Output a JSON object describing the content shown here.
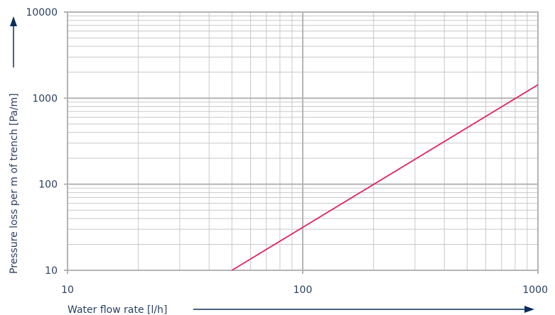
{
  "chart_data": {
    "type": "line",
    "xlabel": "Water flow rate [l/h]",
    "ylabel": "Pressure loss per m of trench [Pa/m]",
    "x_scale": "log",
    "y_scale": "log",
    "xlim": [
      10,
      1000
    ],
    "ylim": [
      10,
      10000
    ],
    "x_ticks": [
      "10",
      "100",
      "1000"
    ],
    "y_ticks": [
      "10",
      "100",
      "1000",
      "10000"
    ],
    "grid": true,
    "series": [
      {
        "x": [
          50,
          1000
        ],
        "y": [
          10,
          1430
        ]
      }
    ],
    "colors": {
      "line": "#e0245e",
      "grid": "#c8c8c8",
      "axis": "#b4b4b4",
      "text": "#2a3f5f",
      "arrow": "#0d2d5a"
    }
  }
}
